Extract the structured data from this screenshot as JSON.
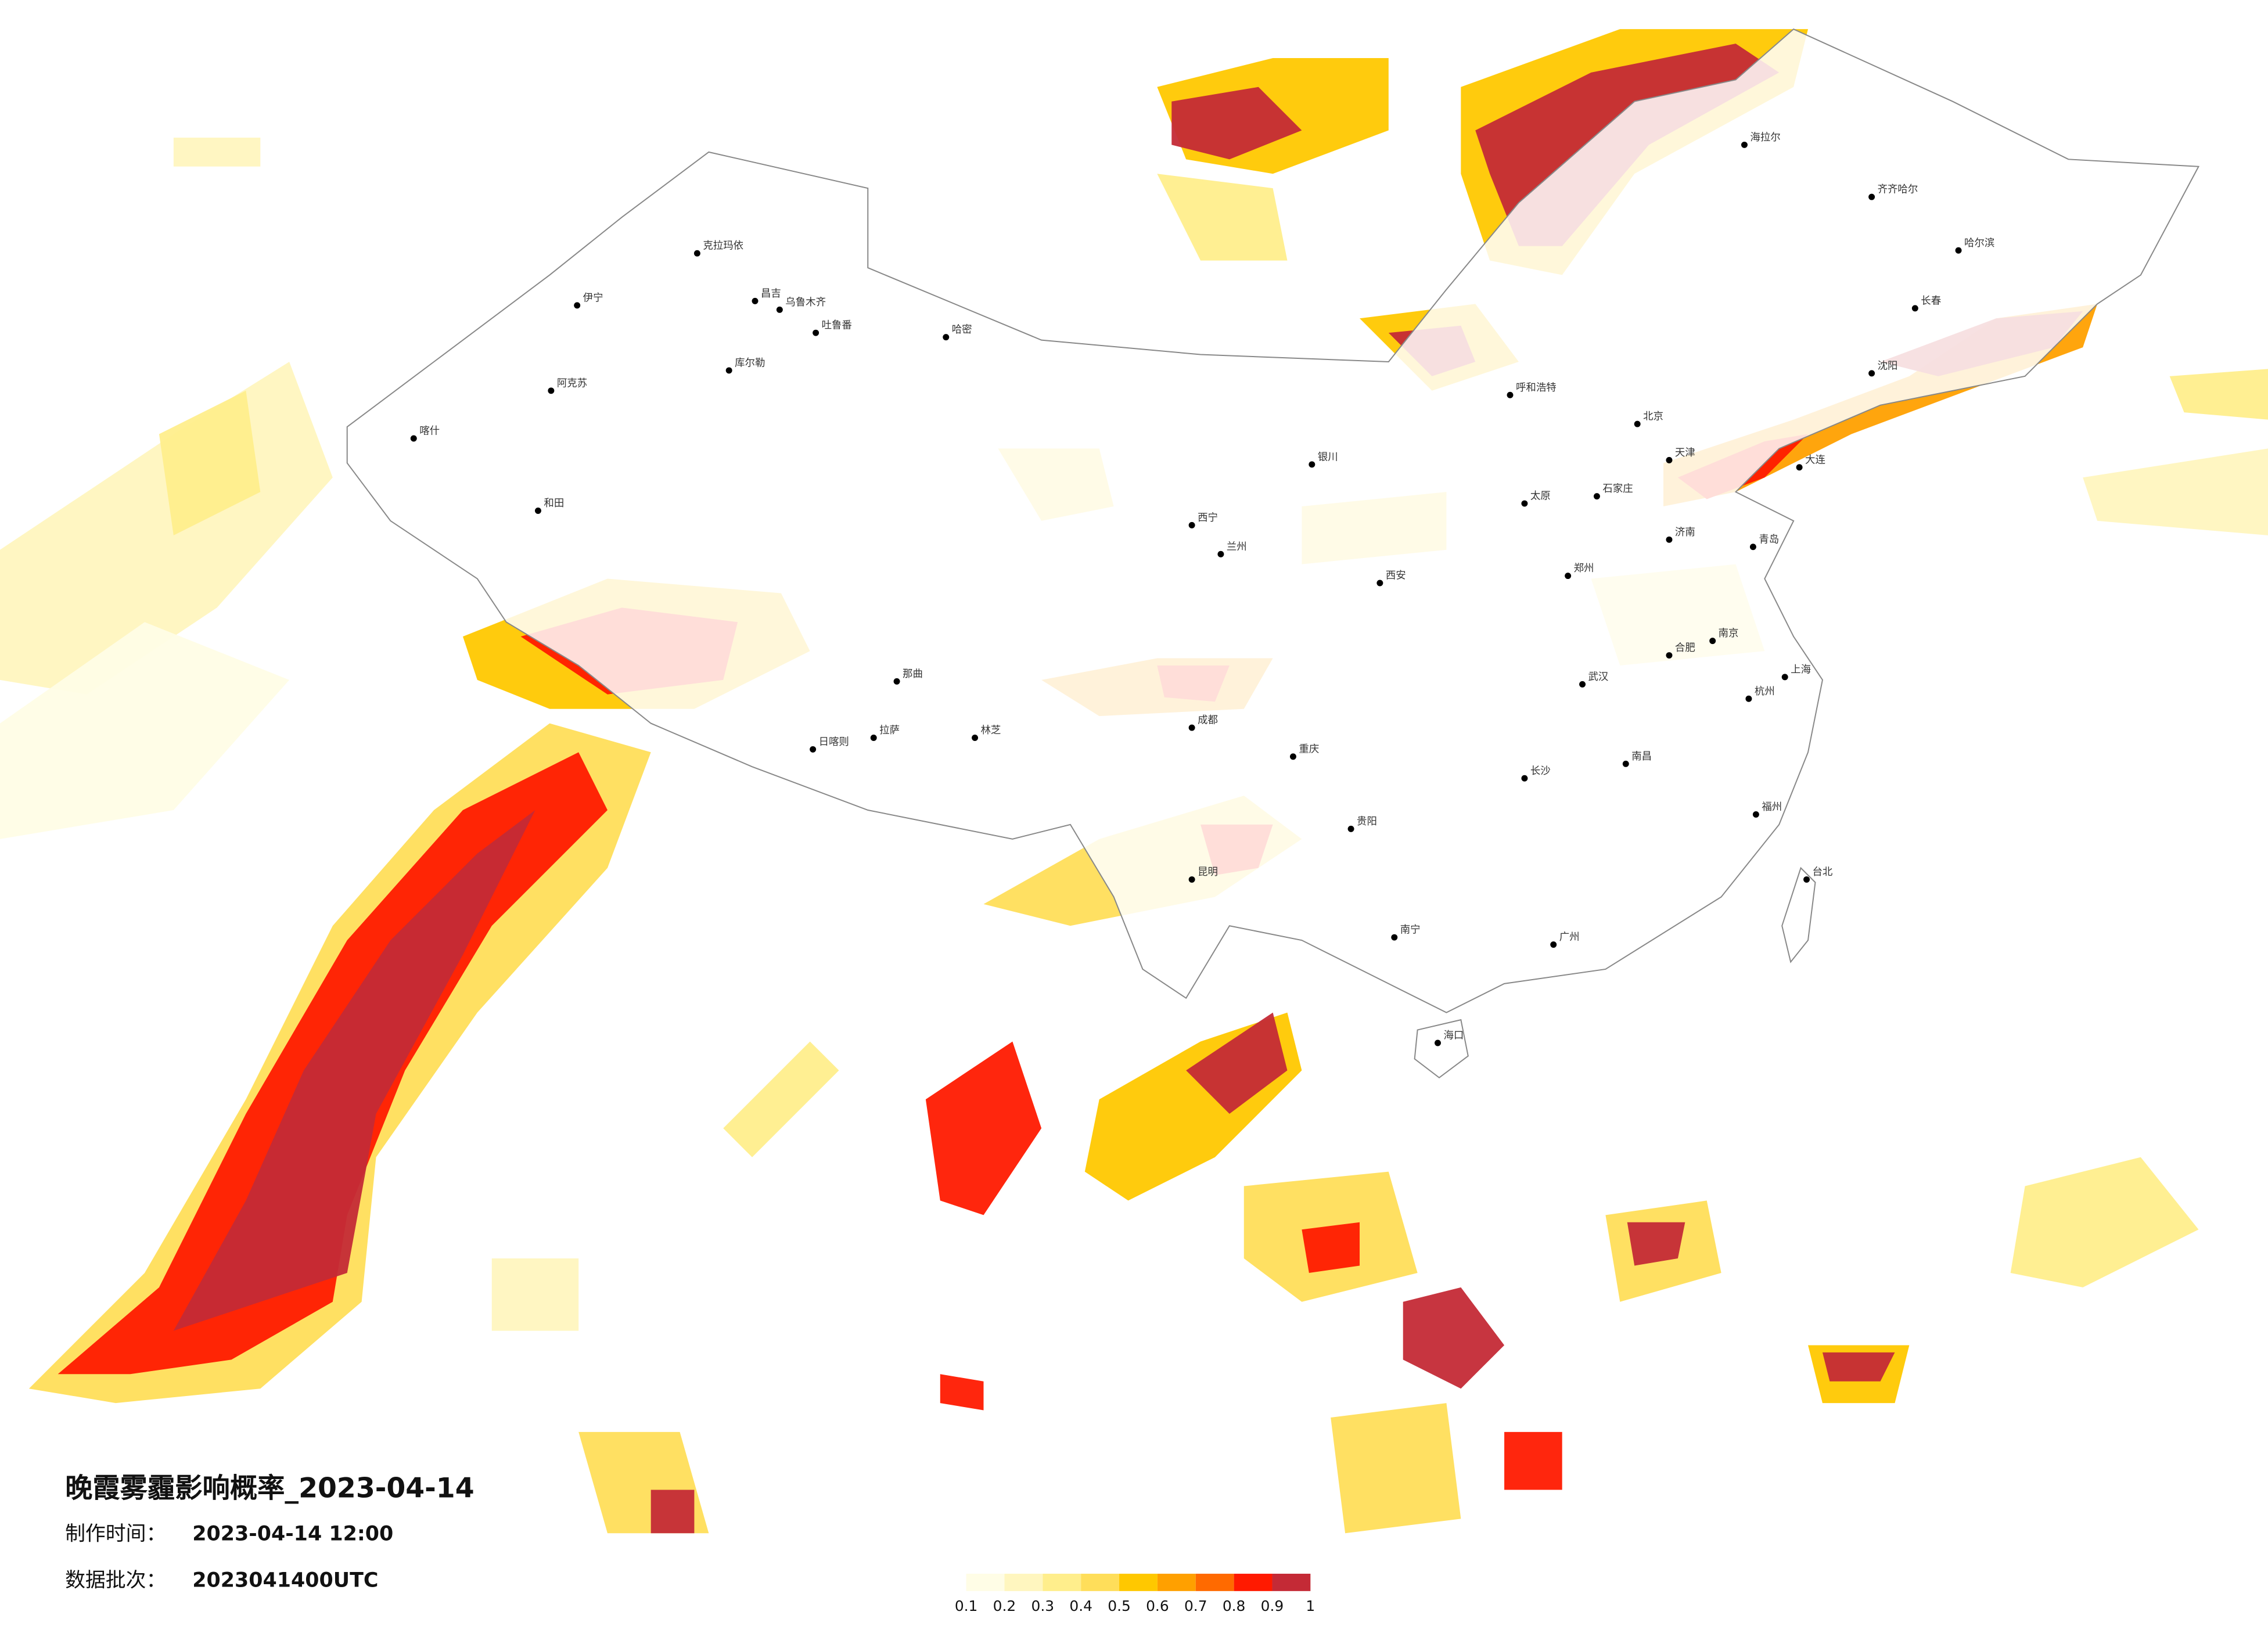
{
  "header": {
    "title": "晚霞雾霾影响概率_2023-04-14"
  },
  "meta": [
    {
      "label": "制作时间：",
      "value": "2023-04-14 12:00"
    },
    {
      "label": "数据批次：",
      "value": "2023041400UTC"
    }
  ],
  "colorbar": {
    "ticks": [
      0.1,
      0.2,
      0.3,
      0.4,
      0.5,
      0.6,
      0.7,
      0.8,
      0.9,
      1
    ],
    "colors": [
      "#fffde6",
      "#fff6bf",
      "#ffee8c",
      "#ffde5a",
      "#ffc800",
      "#ffa000",
      "#ff6a00",
      "#ff1a00",
      "#c42a36"
    ]
  },
  "cities": [
    "克拉玛依",
    "伊宁",
    "昌吉",
    "乌鲁木齐",
    "吐鲁番",
    "哈密",
    "库尔勒",
    "阿克苏",
    "喀什",
    "和田",
    "拉萨",
    "日喀则",
    "林芝",
    "那曲",
    "西宁",
    "兰州",
    "银川",
    "呼和浩特",
    "北京",
    "天津",
    "石家庄",
    "太原",
    "郑州",
    "西安",
    "成都",
    "重庆",
    "贵阳",
    "昆明",
    "南宁",
    "广州",
    "长沙",
    "武汉",
    "南昌",
    "合肥",
    "南京",
    "上海",
    "杭州",
    "福州",
    "台北",
    "海口",
    "沈阳",
    "长春",
    "哈尔滨",
    "齐齐哈尔",
    "海拉尔",
    "济南",
    "青岛",
    "大连"
  ]
}
